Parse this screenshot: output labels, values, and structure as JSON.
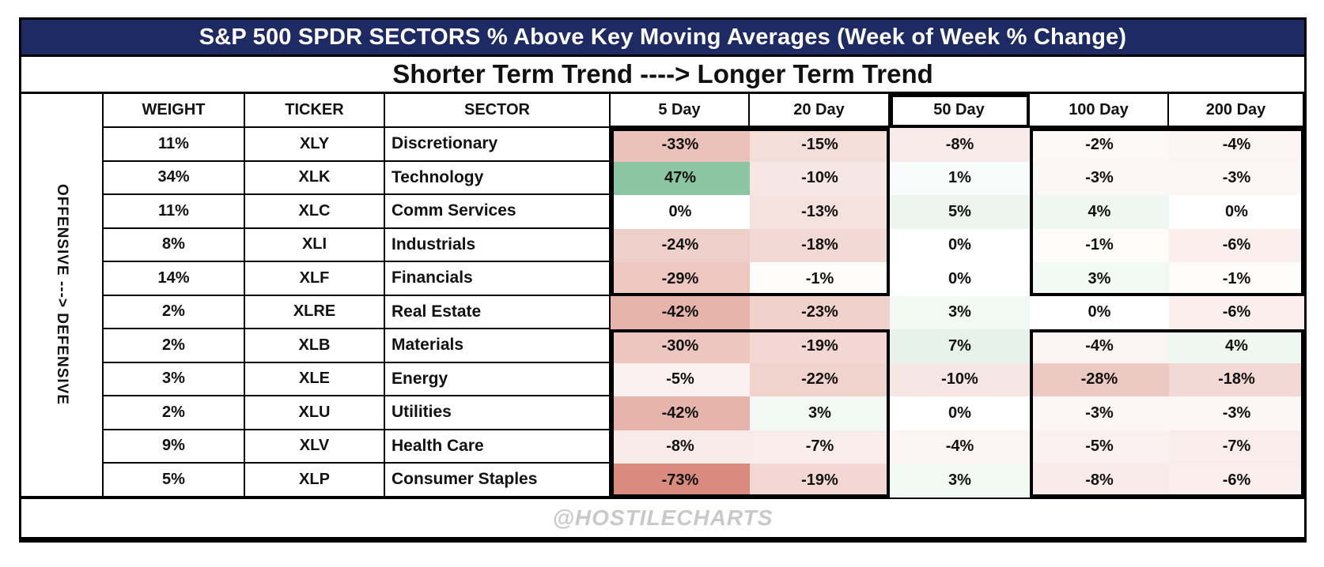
{
  "title": "S&P 500 SPDR SECTORS % Above Key Moving Averages (Week of Week % Change)",
  "subtitle": "Shorter Term Trend ----> Longer Term Trend",
  "side_label": "OFFENSIVE ---> DEFENSIVE",
  "watermark": "@HOSTILECHARTS",
  "colors": {
    "title_bg": "#1e2a63",
    "title_text": "#ffffff",
    "negative_anchor": "#d98b7d",
    "positive_anchor": "#8cc5a1",
    "neutral": "#ffffff",
    "watermark_text": "#c9c9c9",
    "border": "#000000"
  },
  "chart_data": {
    "type": "heatmap",
    "title": "S&P 500 SPDR SECTORS % Above Key Moving Averages (Week of Week % Change)",
    "left_columns": [
      "WEIGHT",
      "TICKER",
      "SECTOR"
    ],
    "columns": [
      "WEIGHT",
      "TICKER",
      "SECTOR",
      "5 Day",
      "20 Day",
      "50 Day",
      "100 Day",
      "200 Day"
    ],
    "day_columns": [
      "5 Day",
      "20 Day",
      "50 Day",
      "100 Day",
      "200 Day"
    ],
    "scale": {
      "min": -73,
      "max": 47,
      "midpoint": 0
    },
    "rows": [
      {
        "weight": "11%",
        "ticker": "XLY",
        "sector": "Discretionary",
        "values": [
          -33,
          -15,
          -8,
          -2,
          -4
        ]
      },
      {
        "weight": "34%",
        "ticker": "XLK",
        "sector": "Technology",
        "values": [
          47,
          -10,
          1,
          -3,
          -3
        ]
      },
      {
        "weight": "11%",
        "ticker": "XLC",
        "sector": "Comm Services",
        "values": [
          0,
          -13,
          5,
          4,
          0
        ]
      },
      {
        "weight": "8%",
        "ticker": "XLI",
        "sector": "Industrials",
        "values": [
          -24,
          -18,
          0,
          -1,
          -6
        ]
      },
      {
        "weight": "14%",
        "ticker": "XLF",
        "sector": "Financials",
        "values": [
          -29,
          -1,
          0,
          3,
          -1
        ]
      },
      {
        "weight": "2%",
        "ticker": "XLRE",
        "sector": "Real Estate",
        "values": [
          -42,
          -23,
          3,
          0,
          -6
        ]
      },
      {
        "weight": "2%",
        "ticker": "XLB",
        "sector": "Materials",
        "values": [
          -30,
          -19,
          7,
          -4,
          4
        ]
      },
      {
        "weight": "3%",
        "ticker": "XLE",
        "sector": "Energy",
        "values": [
          -5,
          -22,
          -10,
          -28,
          -18
        ]
      },
      {
        "weight": "2%",
        "ticker": "XLU",
        "sector": "Utilities",
        "values": [
          -42,
          3,
          0,
          -3,
          -3
        ]
      },
      {
        "weight": "9%",
        "ticker": "XLV",
        "sector": "Health Care",
        "values": [
          -8,
          -7,
          -4,
          -5,
          -7
        ]
      },
      {
        "weight": "5%",
        "ticker": "XLP",
        "sector": "Consumer Staples",
        "values": [
          -73,
          -19,
          3,
          -8,
          -6
        ]
      }
    ]
  }
}
